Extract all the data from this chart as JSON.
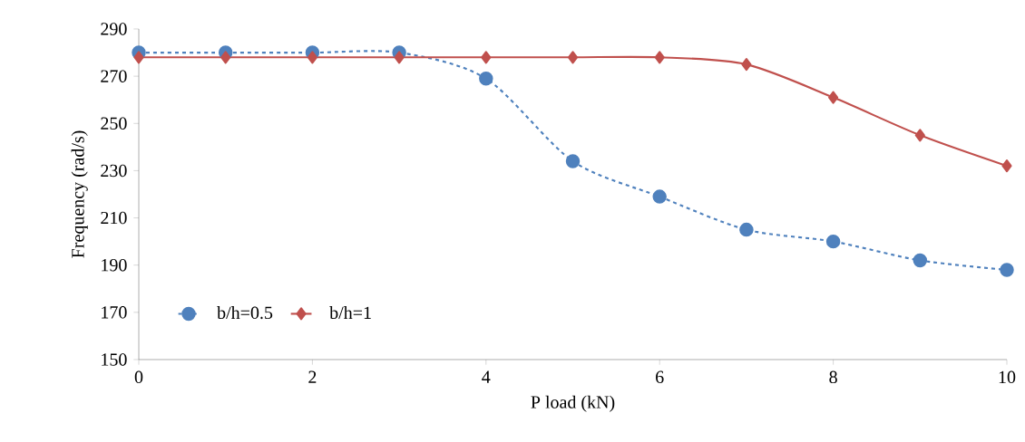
{
  "chart_data": {
    "type": "line",
    "xlabel": "P load (kN)",
    "ylabel": "Frequency  (rad/s)",
    "x": [
      0,
      1,
      2,
      3,
      4,
      5,
      6,
      7,
      8,
      9,
      10
    ],
    "series": [
      {
        "name": "b/h=0.5",
        "color": "#4f81bd",
        "marker": "circle",
        "line_style": "dashed",
        "values": [
          280,
          280,
          280,
          280,
          269,
          234,
          219,
          205,
          200,
          192,
          188
        ]
      },
      {
        "name": "b/h=1",
        "color": "#c0504d",
        "marker": "diamond",
        "line_style": "solid",
        "values": [
          278,
          278,
          278,
          278,
          278,
          278,
          278,
          275,
          261,
          245,
          232
        ]
      }
    ],
    "xlim": [
      0,
      10
    ],
    "xticks": [
      0,
      2,
      4,
      6,
      8,
      10
    ],
    "ylim": [
      150,
      290
    ],
    "yticks": [
      150,
      170,
      190,
      210,
      230,
      250,
      270,
      290
    ],
    "grid": false,
    "legend": "bottom left"
  }
}
